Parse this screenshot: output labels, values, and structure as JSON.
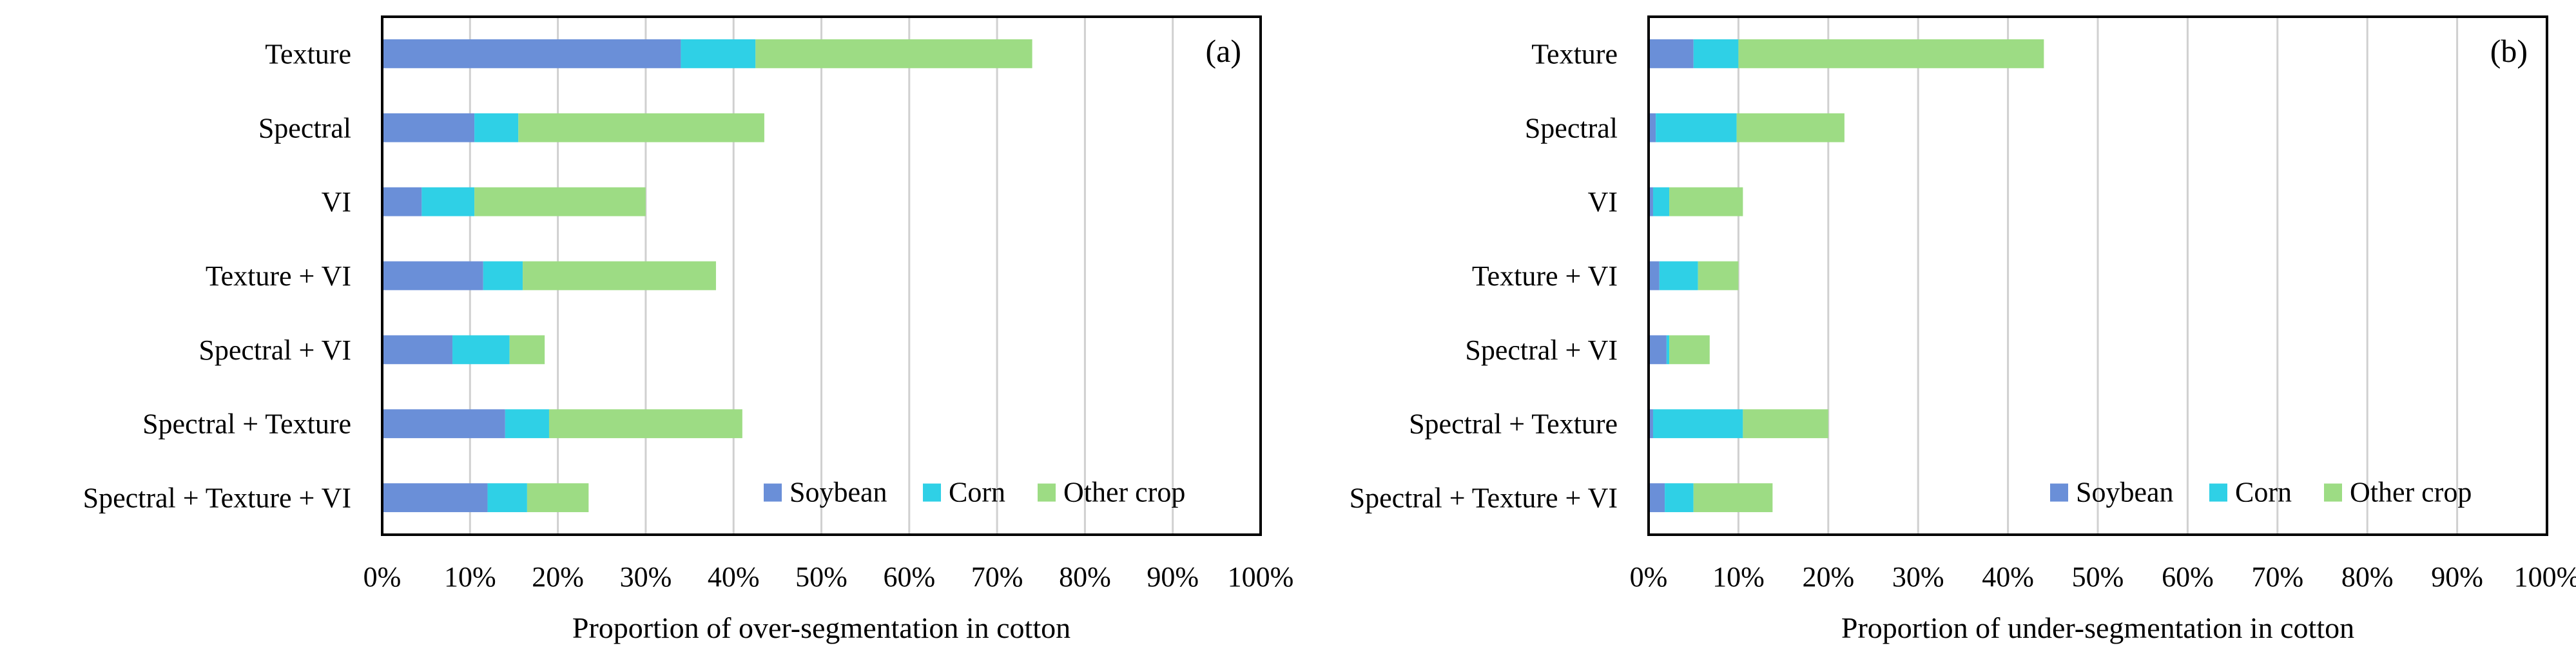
{
  "chart_data": [
    {
      "type": "bar",
      "orientation": "horizontal",
      "stacked": true,
      "panel_label": "(a)",
      "xlabel": "Proportion of over-segmentation in cotton",
      "ylabel": "",
      "xlim": [
        0,
        100
      ],
      "x_ticks": [
        "0%",
        "10%",
        "20%",
        "30%",
        "40%",
        "50%",
        "60%",
        "70%",
        "80%",
        "90%",
        "100%"
      ],
      "grid": "vertical",
      "legend_position": "bottom-right",
      "categories": [
        "Texture",
        "Spectral",
        "VI",
        "Texture + VI",
        "Spectral + VI",
        "Spectral + Texture",
        "Spectral + Texture + VI"
      ],
      "series": [
        {
          "name": "Soybean",
          "color": "#6a8fd8",
          "values": [
            34,
            10.5,
            4.5,
            11.5,
            8,
            14,
            12
          ]
        },
        {
          "name": "Corn",
          "color": "#2fd0e6",
          "values": [
            8.5,
            5,
            6,
            4.5,
            6.5,
            5,
            4.5
          ]
        },
        {
          "name": "Other crop",
          "color": "#9ddc84",
          "values": [
            31.5,
            28,
            19.5,
            22,
            4,
            22,
            7
          ]
        }
      ]
    },
    {
      "type": "bar",
      "orientation": "horizontal",
      "stacked": true,
      "panel_label": "(b)",
      "xlabel": "Proportion of under-segmentation in cotton",
      "ylabel": "",
      "xlim": [
        0,
        100
      ],
      "x_ticks": [
        "0%",
        "10%",
        "20%",
        "30%",
        "40%",
        "50%",
        "60%",
        "70%",
        "80%",
        "90%",
        "100%"
      ],
      "grid": "vertical",
      "legend_position": "bottom-right",
      "categories": [
        "Texture",
        "Spectral",
        "VI",
        "Texture + VI",
        "Spectral + VI",
        "Spectral + Texture",
        "Spectral + Texture + VI"
      ],
      "series": [
        {
          "name": "Soybean",
          "color": "#6a8fd8",
          "values": [
            5,
            0.8,
            0.5,
            1.2,
            2,
            0.5,
            1.8
          ]
        },
        {
          "name": "Corn",
          "color": "#2fd0e6",
          "values": [
            5,
            9,
            1.8,
            4.3,
            0.3,
            10,
            3.2
          ]
        },
        {
          "name": "Other crop",
          "color": "#9ddc84",
          "values": [
            34,
            12,
            8.2,
            4.5,
            4.5,
            9.5,
            8.8
          ]
        }
      ]
    }
  ]
}
